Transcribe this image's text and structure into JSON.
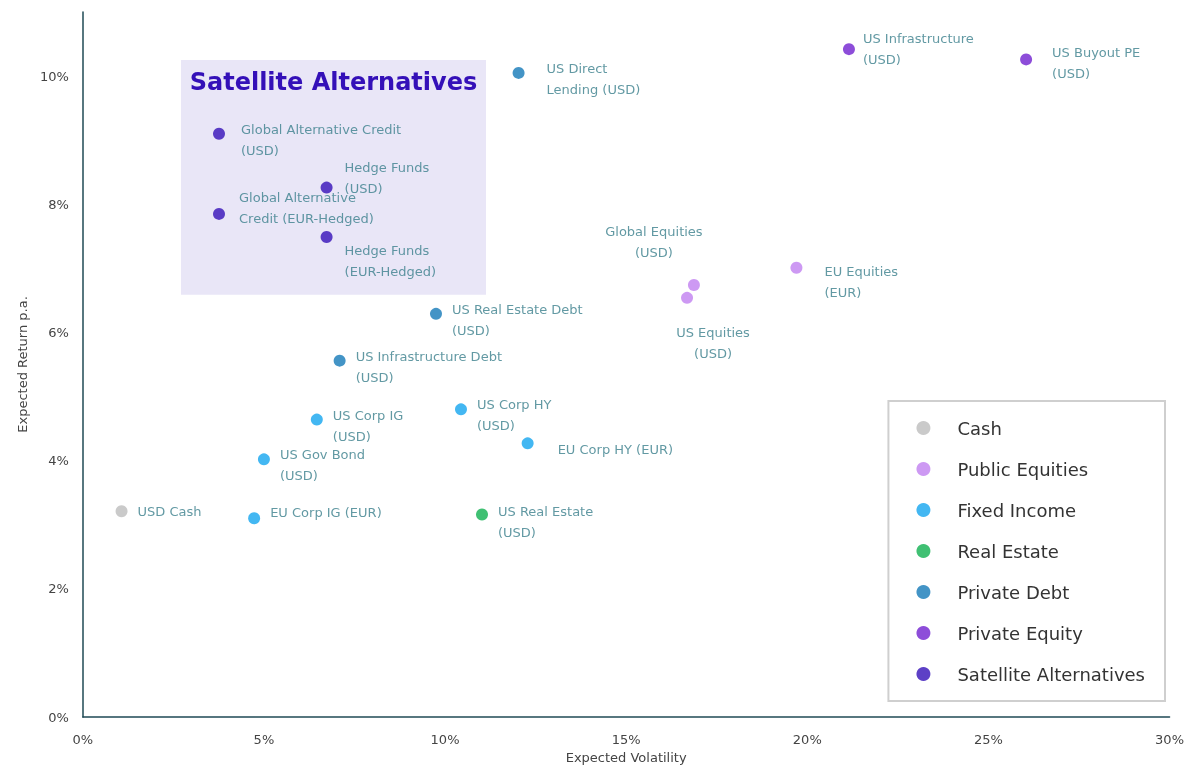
{
  "chart_data": {
    "type": "scatter",
    "xlabel": "Expected Volatility",
    "ylabel": "Expected Return p.a.",
    "xlim": [
      0,
      30
    ],
    "ylim": [
      0,
      11
    ],
    "xticks": [
      {
        "value": 0,
        "label": "0%"
      },
      {
        "value": 5,
        "label": "5%"
      },
      {
        "value": 10,
        "label": "10%"
      },
      {
        "value": 15,
        "label": "15%"
      },
      {
        "value": 20,
        "label": "20%"
      },
      {
        "value": 25,
        "label": "25%"
      },
      {
        "value": 30,
        "label": "30%"
      }
    ],
    "yticks": [
      {
        "value": 0,
        "label": "0%"
      },
      {
        "value": 2,
        "label": "2%"
      },
      {
        "value": 4,
        "label": "4%"
      },
      {
        "value": 6,
        "label": "6%"
      },
      {
        "value": 8,
        "label": "8%"
      },
      {
        "value": 10,
        "label": "10%"
      }
    ],
    "grid": false,
    "legend": "bottom right",
    "marker": "circle",
    "annotations": [
      "Satellite Alternatives"
    ],
    "series": [
      {
        "name": "Cash",
        "color": "#bdbdbd",
        "x": [
          1.07
        ],
        "values": [
          3.21
        ],
        "value_labels": [
          "USD Cash"
        ]
      },
      {
        "name": "Public Equities",
        "color": "#c07ff0",
        "x": [
          16.87,
          16.68,
          19.7
        ],
        "values": [
          6.74,
          6.54,
          7.01
        ],
        "value_labels": [
          "Global Equities\n(USD)",
          "US Equities\n(USD)",
          "EU Equities\n(EUR)"
        ]
      },
      {
        "name": "Fixed Income",
        "color": "#14a5ef",
        "x": [
          4.73,
          5.0,
          6.46,
          10.44,
          12.28
        ],
        "values": [
          3.1,
          4.02,
          4.64,
          4.8,
          4.27
        ],
        "value_labels": [
          "EU Corp IG (EUR)",
          "US Gov Bond\n(USD)",
          "US Corp IG\n(USD)",
          "US Corp HY\n(USD)",
          "EU Corp HY (EUR)"
        ]
      },
      {
        "name": "Real Estate",
        "color": "#10b050",
        "x": [
          11.02
        ],
        "values": [
          3.16
        ],
        "value_labels": [
          "US Real Estate\n(USD)"
        ]
      },
      {
        "name": "Private Debt",
        "color": "#1479b8",
        "x": [
          7.09,
          9.75,
          12.03
        ],
        "values": [
          5.56,
          6.29,
          10.05
        ],
        "value_labels": [
          "US Infrastructure Debt\n(USD)",
          "US Real Estate Debt\n(USD)",
          "US Direct\nLending (USD)"
        ]
      },
      {
        "name": "Private Equity",
        "color": "#7020d0",
        "x": [
          21.15,
          26.04
        ],
        "values": [
          10.42,
          10.26
        ],
        "value_labels": [
          "US Infrastructure\n(USD)",
          "US Buyout PE\n(USD)"
        ]
      },
      {
        "name": "Satellite Alternatives",
        "color": "#3410b8",
        "x": [
          3.76,
          3.76,
          6.73,
          6.73
        ],
        "values": [
          9.1,
          7.85,
          8.26,
          7.49
        ],
        "value_labels": [
          "Global Alternative Credit\n(USD)",
          "Global Alternative\nCredit (EUR-Hedged)",
          "Hedge Funds\n(USD)",
          "Hedge Funds\n(EUR-Hedged)"
        ]
      }
    ]
  }
}
